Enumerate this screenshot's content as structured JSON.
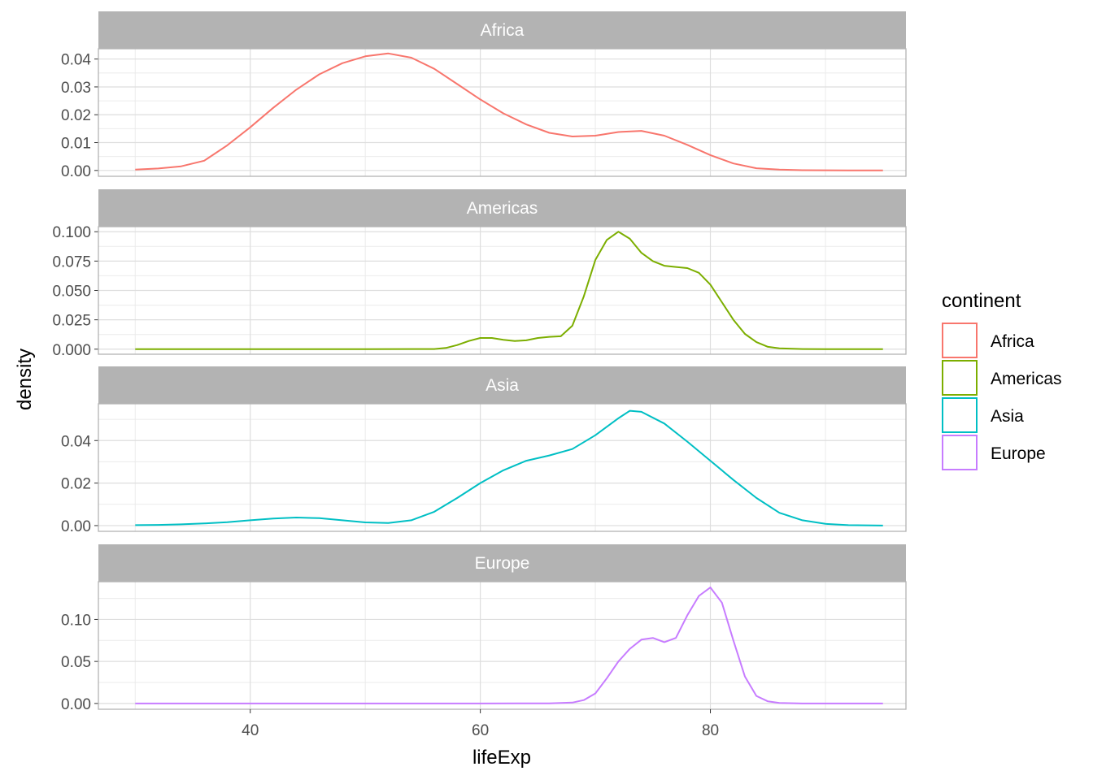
{
  "chart_data": {
    "type": "line",
    "subtype": "faceted-density",
    "xlabel": "lifeExp",
    "ylabel": "density",
    "xlim": [
      26.8,
      97.0
    ],
    "x_ticks": [
      40,
      60,
      80
    ],
    "grid": true,
    "legend": {
      "title": "continent",
      "placement": "right",
      "entries": [
        "Africa",
        "Americas",
        "Asia",
        "Europe"
      ]
    },
    "facets": [
      {
        "label": "Africa",
        "color": "#F8766D",
        "ylim": [
          -0.0021,
          0.0437
        ],
        "y_ticks": [
          0.0,
          0.01,
          0.02,
          0.03,
          0.04
        ],
        "y_tick_labels": [
          "0.00",
          "0.01",
          "0.02",
          "0.03",
          "0.04"
        ],
        "series": {
          "name": "Africa",
          "x": [
            30,
            32,
            34,
            36,
            38,
            40,
            42,
            44,
            46,
            48,
            50,
            52,
            54,
            56,
            58,
            60,
            62,
            64,
            66,
            68,
            70,
            72,
            74,
            76,
            78,
            80,
            82,
            84,
            86,
            88,
            90,
            92,
            94,
            95
          ],
          "y": [
            0.0003,
            0.0007,
            0.0015,
            0.0035,
            0.009,
            0.0155,
            0.0225,
            0.029,
            0.0345,
            0.0385,
            0.041,
            0.042,
            0.0405,
            0.0365,
            0.031,
            0.0255,
            0.0205,
            0.0165,
            0.0135,
            0.0122,
            0.0125,
            0.0138,
            0.0142,
            0.0125,
            0.0092,
            0.0055,
            0.0025,
            0.0008,
            0.0003,
            0.0001,
            5e-05,
            2e-05,
            0.0,
            0.0
          ]
        }
      },
      {
        "label": "Americas",
        "color": "#7CAE00",
        "ylim": [
          -0.0043,
          0.1043
        ],
        "y_ticks": [
          0.0,
          0.025,
          0.05,
          0.075,
          0.1
        ],
        "y_tick_labels": [
          "0.000",
          "0.025",
          "0.050",
          "0.075",
          "0.100"
        ],
        "series": {
          "name": "Americas",
          "x": [
            30,
            40,
            50,
            56,
            57,
            58,
            59,
            60,
            61,
            62,
            63,
            64,
            65,
            66,
            67,
            68,
            69,
            70,
            71,
            72,
            73,
            74,
            75,
            76,
            77,
            78,
            79,
            80,
            81,
            82,
            83,
            84,
            85,
            86,
            88,
            90,
            95
          ],
          "y": [
            0.0,
            0.0,
            0.0,
            0.0001,
            0.001,
            0.0035,
            0.007,
            0.0095,
            0.0095,
            0.008,
            0.007,
            0.0075,
            0.0095,
            0.0105,
            0.011,
            0.02,
            0.045,
            0.076,
            0.093,
            0.1,
            0.094,
            0.082,
            0.075,
            0.071,
            0.07,
            0.069,
            0.065,
            0.055,
            0.04,
            0.025,
            0.013,
            0.006,
            0.002,
            0.0007,
            0.0001,
            0.0,
            0.0
          ]
        }
      },
      {
        "label": "Asia",
        "color": "#00BFC4",
        "ylim": [
          -0.0027,
          0.0573
        ],
        "y_ticks": [
          0.0,
          0.02,
          0.04
        ],
        "y_tick_labels": [
          "0.00",
          "0.02",
          "0.04"
        ],
        "series": {
          "name": "Asia",
          "x": [
            30,
            32,
            34,
            36,
            38,
            40,
            42,
            44,
            46,
            48,
            50,
            52,
            54,
            56,
            58,
            60,
            62,
            64,
            66,
            68,
            70,
            72,
            73,
            74,
            76,
            78,
            80,
            82,
            84,
            86,
            88,
            90,
            92,
            95
          ],
          "y": [
            0.0002,
            0.0003,
            0.0006,
            0.001,
            0.0016,
            0.0025,
            0.0033,
            0.0038,
            0.0035,
            0.0025,
            0.0015,
            0.0012,
            0.0025,
            0.0065,
            0.013,
            0.02,
            0.026,
            0.0305,
            0.033,
            0.036,
            0.0425,
            0.0505,
            0.054,
            0.0535,
            0.048,
            0.0395,
            0.0305,
            0.0215,
            0.013,
            0.006,
            0.0025,
            0.0008,
            0.0002,
            0.0
          ]
        }
      },
      {
        "label": "Europe",
        "color": "#C77CFF",
        "ylim": [
          -0.0069,
          0.1449
        ],
        "y_ticks": [
          0.0,
          0.05,
          0.1
        ],
        "y_tick_labels": [
          "0.00",
          "0.05",
          "0.10"
        ],
        "series": {
          "name": "Europe",
          "x": [
            30,
            40,
            50,
            60,
            66,
            68,
            69,
            70,
            71,
            72,
            73,
            74,
            75,
            76,
            77,
            78,
            79,
            80,
            81,
            82,
            83,
            84,
            85,
            86,
            88,
            95
          ],
          "y": [
            0.0,
            0.0,
            0.0,
            0.0,
            0.0002,
            0.001,
            0.004,
            0.012,
            0.03,
            0.05,
            0.065,
            0.076,
            0.078,
            0.073,
            0.078,
            0.105,
            0.128,
            0.138,
            0.12,
            0.075,
            0.032,
            0.009,
            0.0025,
            0.0005,
            0.0,
            0.0
          ]
        }
      }
    ]
  }
}
